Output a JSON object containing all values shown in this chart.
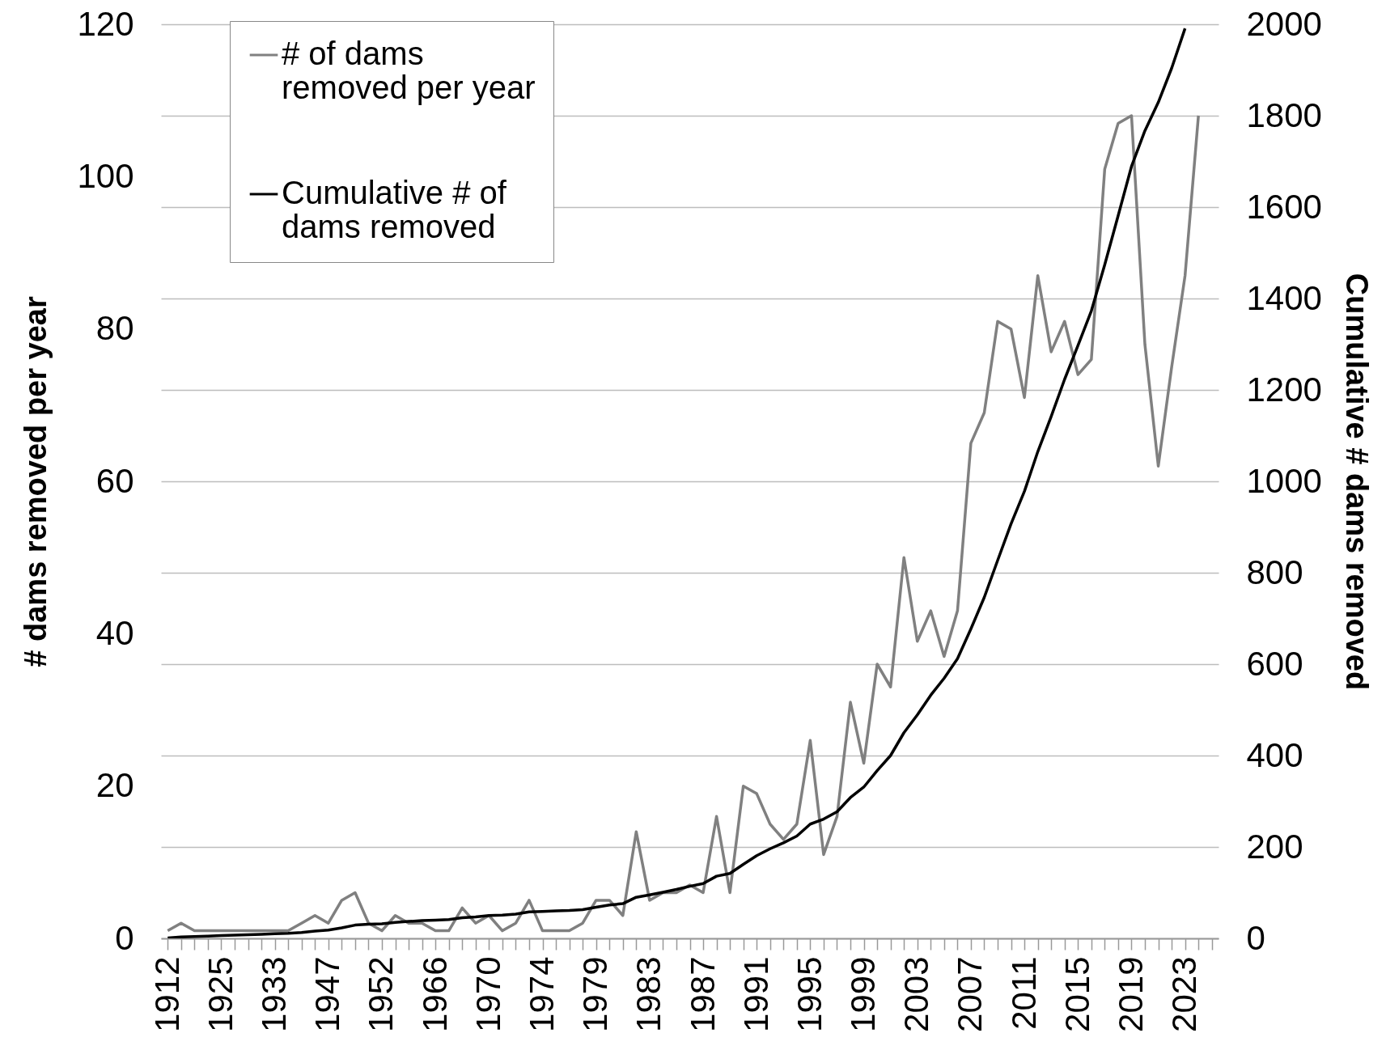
{
  "chart_data": {
    "type": "line",
    "categories": [
      "1912",
      null,
      null,
      null,
      "1925",
      null,
      null,
      null,
      "1933",
      null,
      null,
      null,
      "1947",
      null,
      null,
      null,
      "1952",
      null,
      null,
      null,
      "1966",
      null,
      null,
      null,
      "1970",
      null,
      null,
      null,
      "1974",
      null,
      null,
      null,
      "1979",
      null,
      null,
      null,
      "1983",
      null,
      null,
      null,
      "1987",
      null,
      null,
      null,
      "1991",
      null,
      null,
      null,
      "1995",
      null,
      null,
      null,
      "1999",
      null,
      null,
      null,
      "2003",
      null,
      null,
      null,
      "2007",
      null,
      null,
      null,
      "2011",
      null,
      null,
      null,
      "2015",
      null,
      null,
      null,
      "2019",
      null,
      null,
      null,
      "2023",
      null,
      null
    ],
    "series": [
      {
        "name": "# of dams removed per year",
        "color": "#808080",
        "values": [
          1,
          2,
          1,
          1,
          1,
          1,
          1,
          1,
          1,
          1,
          2,
          3,
          2,
          5,
          6,
          2,
          1,
          3,
          2,
          2,
          1,
          1,
          4,
          2,
          3,
          1,
          2,
          5,
          1,
          1,
          1,
          2,
          5,
          5,
          3,
          14,
          5,
          6,
          6,
          7,
          6,
          16,
          6,
          20,
          19,
          15,
          13,
          15,
          26,
          11,
          16,
          31,
          23,
          36,
          33,
          50,
          39,
          43,
          37,
          43,
          65,
          69,
          81,
          80,
          71,
          87,
          77,
          81,
          74,
          76,
          101,
          107,
          108,
          78,
          62,
          75,
          87,
          108,
          null
        ]
      },
      {
        "name": "Cumulative # of dams removed",
        "color": "#000000",
        "axis": "y2",
        "values": [
          1,
          3,
          4,
          5,
          6,
          7,
          8,
          9,
          10,
          11,
          13,
          16,
          18,
          23,
          29,
          31,
          32,
          35,
          37,
          39,
          40,
          41,
          45,
          47,
          50,
          51,
          53,
          58,
          59,
          60,
          61,
          63,
          68,
          73,
          76,
          90,
          95,
          101,
          107,
          114,
          120,
          136,
          142,
          162,
          181,
          196,
          209,
          224,
          250,
          261,
          277,
          308,
          331,
          367,
          400,
          450,
          489,
          532,
          569,
          612,
          677,
          746,
          827,
          907,
          978,
          1065,
          1142,
          1223,
          1297,
          1373,
          1474,
          1581,
          1689,
          1767,
          1829,
          1904,
          1991,
          null,
          null
        ]
      }
    ],
    "ylabel": "# dams removed per year",
    "y2label": "Cumulative # dams removed",
    "ylim": [
      0,
      120
    ],
    "yticks": [
      0,
      20,
      40,
      60,
      80,
      100,
      120
    ],
    "y2lim": [
      0,
      2000
    ],
    "y2ticks": [
      0,
      200,
      400,
      600,
      800,
      1000,
      1200,
      1400,
      1600,
      1800,
      2000
    ],
    "grid": true,
    "legend": "top left",
    "line_style": "solid"
  }
}
